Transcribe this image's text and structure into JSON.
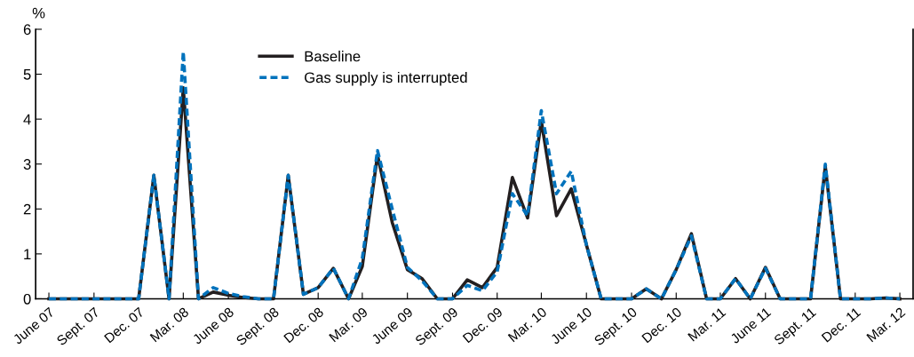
{
  "chart_data": {
    "type": "line",
    "ylabel": "%",
    "x": [
      "2007-06",
      "2007-07",
      "2007-08",
      "2007-09",
      "2007-10",
      "2007-11",
      "2007-12",
      "2008-01",
      "2008-02",
      "2008-03",
      "2008-04",
      "2008-05",
      "2008-06",
      "2008-07",
      "2008-08",
      "2008-09",
      "2008-10",
      "2008-11",
      "2008-12",
      "2009-01",
      "2009-02",
      "2009-03",
      "2009-04",
      "2009-05",
      "2009-06",
      "2009-07",
      "2009-08",
      "2009-09",
      "2009-10",
      "2009-11",
      "2009-12",
      "2010-01",
      "2010-02",
      "2010-03",
      "2010-04",
      "2010-05",
      "2010-06",
      "2010-07",
      "2010-08",
      "2010-09",
      "2010-10",
      "2010-11",
      "2010-12",
      "2011-01",
      "2011-02",
      "2011-03",
      "2011-04",
      "2011-05",
      "2011-06",
      "2011-07",
      "2011-08",
      "2011-09",
      "2011-10",
      "2011-11",
      "2011-12",
      "2012-01",
      "2012-02",
      "2012-03"
    ],
    "series": [
      {
        "name": "Baseline",
        "color": "#231f20",
        "line_style": "solid",
        "values": [
          0,
          0,
          0,
          0,
          0,
          0,
          0,
          2.75,
          0,
          4.7,
          0,
          0.15,
          0.08,
          0.03,
          0,
          0,
          2.75,
          0.1,
          0.25,
          0.68,
          0,
          0.72,
          3.2,
          1.7,
          0.65,
          0.45,
          0,
          0,
          0.42,
          0.25,
          0.7,
          2.7,
          1.8,
          3.96,
          1.85,
          2.45,
          1.2,
          0,
          0,
          0,
          0.22,
          0,
          0.65,
          1.45,
          0,
          0,
          0.45,
          0,
          0.7,
          0,
          0,
          0,
          2.95,
          0,
          0,
          0,
          0.02,
          0
        ]
      },
      {
        "name": "Gas supply is interrupted",
        "color": "#0072bc",
        "line_style": "dashed",
        "values": [
          0,
          0,
          0,
          0,
          0,
          0,
          0,
          2.75,
          0,
          5.5,
          0,
          0.25,
          0.12,
          0.05,
          0,
          0,
          2.75,
          0.1,
          0.25,
          0.68,
          0,
          0.9,
          3.3,
          2.0,
          0.7,
          0.4,
          0,
          0,
          0.3,
          0.18,
          0.6,
          2.34,
          1.85,
          4.19,
          2.34,
          2.84,
          1.2,
          0,
          0,
          0,
          0.22,
          0,
          0.65,
          1.4,
          0,
          0,
          0.45,
          0,
          0.68,
          0,
          0,
          0,
          3.0,
          0,
          0,
          0,
          0.02,
          0
        ]
      }
    ],
    "xlim": [
      "2007-05-05",
      "2012-03-28"
    ],
    "xticks": [
      {
        "value": "2007-06",
        "label": "June 07"
      },
      {
        "value": "2007-09",
        "label": "Sept. 07"
      },
      {
        "value": "2007-12",
        "label": "Dec. 07"
      },
      {
        "value": "2008-03",
        "label": "Mar. 08"
      },
      {
        "value": "2008-06",
        "label": "June 08"
      },
      {
        "value": "2008-09",
        "label": "Sept. 08"
      },
      {
        "value": "2008-12",
        "label": "Dec. 08"
      },
      {
        "value": "2009-03",
        "label": "Mar. 09"
      },
      {
        "value": "2009-06",
        "label": "June 09"
      },
      {
        "value": "2009-09",
        "label": "Sept. 09"
      },
      {
        "value": "2009-12",
        "label": "Dec. 09"
      },
      {
        "value": "2010-03",
        "label": "Mar. 10"
      },
      {
        "value": "2010-06",
        "label": "June 10"
      },
      {
        "value": "2010-09",
        "label": "Sept. 10"
      },
      {
        "value": "2010-12",
        "label": "Dec. 10"
      },
      {
        "value": "2011-03",
        "label": "Mar. 11"
      },
      {
        "value": "2011-06",
        "label": "June 11"
      },
      {
        "value": "2011-09",
        "label": "Sept. 11"
      },
      {
        "value": "2011-12",
        "label": "Dec. 11"
      },
      {
        "value": "2012-03",
        "label": "Mar. 12"
      }
    ],
    "ylim": [
      0,
      6
    ],
    "yticks": [
      0,
      1,
      2,
      3,
      4,
      5,
      6
    ],
    "grid": false,
    "legend": "top",
    "marker": "none"
  }
}
